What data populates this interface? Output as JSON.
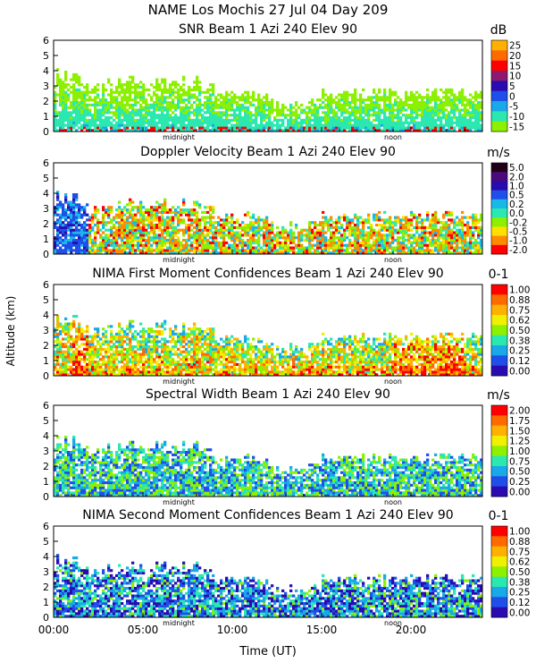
{
  "header": {
    "title_line": "NAME Los Mochis   27 Jul 04 Day 209"
  },
  "chart_data": [
    {
      "type": "heatmap",
      "title": "SNR Beam 1 Azi 240 Elev 90",
      "unit": "dB",
      "ylabel": "Altitude (km)",
      "ylim": [
        0,
        6
      ],
      "yticks": [
        0,
        1,
        2,
        3,
        4,
        5,
        6
      ],
      "xlim_hours": [
        0,
        24
      ],
      "colorbar": {
        "labels": [
          "25",
          "20",
          "15",
          "10",
          "5",
          "0",
          "-5",
          "-10",
          "-15"
        ],
        "colors": [
          "#ffb000",
          "#ff6a00",
          "#ff0000",
          "#8c1a6e",
          "#2a0bb0",
          "#1f4fe8",
          "#19a8e8",
          "#2ae8b0",
          "#8cf000"
        ]
      },
      "marker_labels": {
        "midnight": "midnight",
        "noon": "noon"
      }
    },
    {
      "type": "heatmap",
      "title": "Doppler Velocity Beam 1 Azi 240 Elev 90",
      "unit": "m/s",
      "ylim": [
        0,
        6
      ],
      "yticks": [
        0,
        1,
        2,
        3,
        4,
        5,
        6
      ],
      "xlim_hours": [
        0,
        24
      ],
      "colorbar": {
        "labels": [
          "5.0",
          "2.0",
          "1.0",
          "0.5",
          "0.2",
          "0.0",
          "-0.2",
          "-0.5",
          "-1.0",
          "-2.0"
        ],
        "colors": [
          "#200018",
          "#4a0a7a",
          "#2a0bb0",
          "#1f4fe8",
          "#19b8e8",
          "#2ae8b0",
          "#8cf000",
          "#ffe000",
          "#ff8c00",
          "#ff0000"
        ]
      },
      "marker_labels": {
        "midnight": "midnight",
        "noon": "noon"
      }
    },
    {
      "type": "heatmap",
      "title": "NIMA First Moment Confidences Beam 1 Azi 240 Elev 90",
      "unit": "0-1",
      "ylim": [
        0,
        6
      ],
      "yticks": [
        0,
        1,
        2,
        3,
        4,
        5,
        6
      ],
      "xlim_hours": [
        0,
        24
      ],
      "colorbar": {
        "labels": [
          "1.00",
          "0.88",
          "0.75",
          "0.62",
          "0.50",
          "0.38",
          "0.25",
          "0.12",
          "0.00"
        ],
        "colors": [
          "#ff0000",
          "#ff6a00",
          "#ffb000",
          "#f0f000",
          "#8cf000",
          "#2ae8b0",
          "#19a8e8",
          "#1f4fe8",
          "#2a0bb0"
        ]
      },
      "marker_labels": {
        "midnight": "midnight",
        "noon": "noon"
      }
    },
    {
      "type": "heatmap",
      "title": "Spectral Width Beam 1 Azi 240 Elev 90",
      "unit": "m/s",
      "ylim": [
        0,
        6
      ],
      "yticks": [
        0,
        1,
        2,
        3,
        4,
        5,
        6
      ],
      "xlim_hours": [
        0,
        24
      ],
      "colorbar": {
        "labels": [
          "2.00",
          "1.75",
          "1.50",
          "1.25",
          "1.00",
          "0.75",
          "0.50",
          "0.25",
          "0.00"
        ],
        "colors": [
          "#ff0000",
          "#ff6a00",
          "#ffb000",
          "#f0f000",
          "#8cf000",
          "#2ae8b0",
          "#19a8e8",
          "#1f4fe8",
          "#2a0bb0"
        ]
      },
      "marker_labels": {
        "midnight": "midnight",
        "noon": "noon"
      }
    },
    {
      "type": "heatmap",
      "title": "NIMA Second Moment Confidences Beam 1 Azi 240 Elev 90",
      "unit": "0-1",
      "ylim": [
        0,
        6
      ],
      "yticks": [
        0,
        1,
        2,
        3,
        4,
        5,
        6
      ],
      "xlim_hours": [
        0,
        24
      ],
      "xlabel": "Time (UT)",
      "xtick_labels": [
        "00:00",
        "05:00",
        "10:00",
        "15:00",
        "20:00"
      ],
      "colorbar": {
        "labels": [
          "1.00",
          "0.88",
          "0.75",
          "0.62",
          "0.50",
          "0.38",
          "0.25",
          "0.12",
          "0.00"
        ],
        "colors": [
          "#ff0000",
          "#ff6a00",
          "#ffb000",
          "#f0f000",
          "#8cf000",
          "#2ae8b0",
          "#19a8e8",
          "#1f4fe8",
          "#2a0bb0"
        ]
      },
      "marker_labels": {
        "midnight": "midnight",
        "noon": "noon"
      }
    }
  ]
}
